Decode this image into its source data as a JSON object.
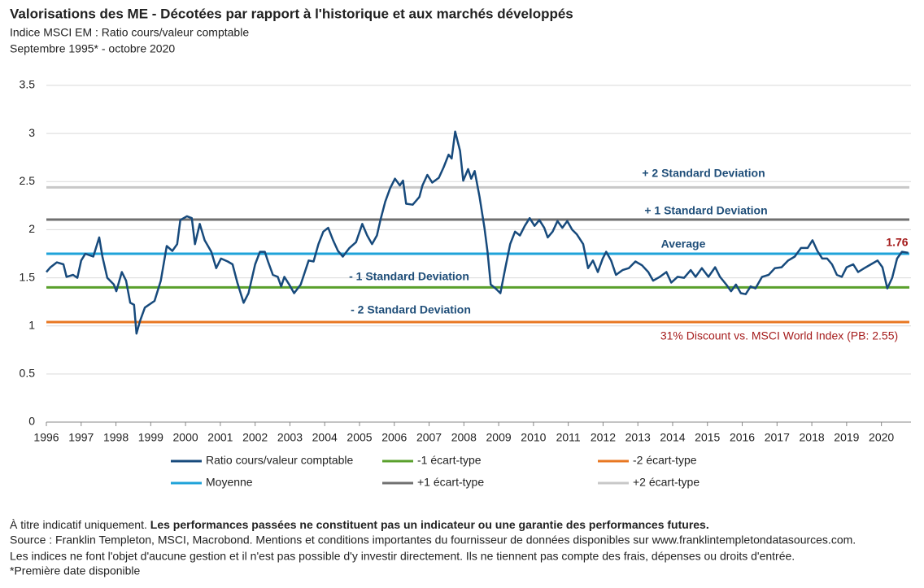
{
  "chart_data": {
    "type": "line",
    "title": "Valorisations des ME - Décotées par rapport à l'historique et aux marchés développés",
    "subtitle": "Indice MSCI EM : Ratio cours/valeur comptable",
    "period": "Septembre 1995* - octobre 2020",
    "x": [
      1996.0,
      1996.12,
      1996.3,
      1996.49,
      1996.58,
      1996.77,
      1996.89,
      1997.0,
      1997.12,
      1997.35,
      1997.52,
      1997.61,
      1997.75,
      1997.94,
      1998.01,
      1998.17,
      1998.29,
      1998.41,
      1998.52,
      1998.59,
      1998.69,
      1998.83,
      1999.11,
      1999.29,
      1999.46,
      1999.62,
      1999.76,
      1999.85,
      2000.04,
      2000.18,
      2000.27,
      2000.41,
      2000.55,
      2000.74,
      2000.88,
      2001.02,
      2001.21,
      2001.35,
      2001.49,
      2001.67,
      2001.81,
      2002.0,
      2002.14,
      2002.28,
      2002.37,
      2002.51,
      2002.65,
      2002.75,
      2002.84,
      2002.98,
      2003.12,
      2003.31,
      2003.54,
      2003.68,
      2003.82,
      2003.96,
      2004.1,
      2004.24,
      2004.38,
      2004.52,
      2004.71,
      2004.9,
      2005.08,
      2005.22,
      2005.36,
      2005.5,
      2005.6,
      2005.74,
      2005.88,
      2006.02,
      2006.16,
      2006.25,
      2006.34,
      2006.53,
      2006.72,
      2006.81,
      2006.95,
      2007.09,
      2007.28,
      2007.42,
      2007.56,
      2007.65,
      2007.75,
      2007.89,
      2007.98,
      2008.12,
      2008.21,
      2008.31,
      2008.45,
      2008.59,
      2008.68,
      2008.77,
      2008.91,
      2009.05,
      2009.19,
      2009.33,
      2009.47,
      2009.61,
      2009.75,
      2009.89,
      2010.03,
      2010.17,
      2010.31,
      2010.41,
      2010.55,
      2010.69,
      2010.83,
      2010.97,
      2011.11,
      2011.25,
      2011.43,
      2011.57,
      2011.71,
      2011.85,
      2011.99,
      2012.09,
      2012.23,
      2012.37,
      2012.56,
      2012.74,
      2012.93,
      2013.12,
      2013.3,
      2013.44,
      2013.63,
      2013.82,
      2013.96,
      2014.14,
      2014.33,
      2014.52,
      2014.66,
      2014.84,
      2015.03,
      2015.22,
      2015.36,
      2015.54,
      2015.68,
      2015.82,
      2015.96,
      2016.1,
      2016.24,
      2016.38,
      2016.57,
      2016.76,
      2016.94,
      2017.13,
      2017.32,
      2017.51,
      2017.69,
      2017.88,
      2018.02,
      2018.16,
      2018.3,
      2018.44,
      2018.58,
      2018.72,
      2018.86,
      2019.0,
      2019.19,
      2019.33,
      2019.51,
      2019.7,
      2019.89,
      2020.03,
      2020.17,
      2020.31,
      2020.45,
      2020.59,
      2020.77
    ],
    "series": [
      {
        "name": "Ratio cours/valeur comptable",
        "color": "#174a7c",
        "values": [
          1.56,
          1.61,
          1.66,
          1.64,
          1.51,
          1.53,
          1.5,
          1.68,
          1.75,
          1.72,
          1.92,
          1.72,
          1.5,
          1.43,
          1.36,
          1.56,
          1.47,
          1.24,
          1.22,
          0.92,
          1.05,
          1.19,
          1.26,
          1.47,
          1.83,
          1.78,
          1.85,
          2.1,
          2.14,
          2.12,
          1.85,
          2.06,
          1.89,
          1.77,
          1.6,
          1.7,
          1.67,
          1.64,
          1.45,
          1.24,
          1.34,
          1.64,
          1.77,
          1.77,
          1.67,
          1.53,
          1.51,
          1.41,
          1.51,
          1.43,
          1.34,
          1.43,
          1.68,
          1.67,
          1.85,
          1.98,
          2.02,
          1.89,
          1.78,
          1.72,
          1.81,
          1.87,
          2.06,
          1.94,
          1.85,
          1.94,
          2.1,
          2.29,
          2.43,
          2.53,
          2.46,
          2.51,
          2.27,
          2.26,
          2.34,
          2.46,
          2.57,
          2.49,
          2.54,
          2.65,
          2.78,
          2.74,
          3.02,
          2.82,
          2.51,
          2.63,
          2.53,
          2.61,
          2.34,
          2.02,
          1.77,
          1.43,
          1.39,
          1.34,
          1.6,
          1.85,
          1.98,
          1.94,
          2.04,
          2.12,
          2.04,
          2.1,
          2.02,
          1.92,
          1.98,
          2.09,
          2.02,
          2.09,
          2.0,
          1.95,
          1.85,
          1.6,
          1.68,
          1.56,
          1.7,
          1.77,
          1.68,
          1.53,
          1.58,
          1.6,
          1.67,
          1.63,
          1.56,
          1.47,
          1.51,
          1.56,
          1.45,
          1.51,
          1.5,
          1.58,
          1.51,
          1.6,
          1.51,
          1.61,
          1.51,
          1.43,
          1.36,
          1.43,
          1.34,
          1.33,
          1.41,
          1.39,
          1.51,
          1.53,
          1.6,
          1.61,
          1.68,
          1.72,
          1.81,
          1.81,
          1.89,
          1.78,
          1.7,
          1.7,
          1.64,
          1.53,
          1.51,
          1.61,
          1.64,
          1.56,
          1.6,
          1.64,
          1.68,
          1.61,
          1.39,
          1.5,
          1.7,
          1.77,
          1.76
        ]
      }
    ],
    "reference_lines": [
      {
        "name": "-1 écart-type",
        "color": "#5aa02c",
        "value": 1.4,
        "annotation": "- 1 Standard Deviation"
      },
      {
        "name": "-2 écart-type",
        "color": "#e87722",
        "value": 1.04,
        "annotation": "- 2 Standard Deviation"
      },
      {
        "name": "Moyenne",
        "color": "#1fa3d9",
        "value": 1.75,
        "annotation": "Average"
      },
      {
        "name": "+1 écart-type",
        "color": "#707070",
        "value": 2.105,
        "annotation": "+ 1 Standard Deviation"
      },
      {
        "name": "+2 écart-type",
        "color": "#c8c8c8",
        "value": 2.44,
        "annotation": "+ 2 Standard Deviation"
      }
    ],
    "discount_note": "31% Discount vs. MSCI World Index (PB: 2.55)",
    "xlim": [
      1996,
      2020.85
    ],
    "xticks": [
      1996,
      1997,
      1998,
      1999,
      2000,
      2001,
      2002,
      2003,
      2004,
      2005,
      2006,
      2007,
      2008,
      2009,
      2010,
      2011,
      2012,
      2013,
      2014,
      2015,
      2016,
      2017,
      2018,
      2019,
      2020
    ],
    "ylim": [
      0,
      3.5
    ],
    "yticks": [
      0,
      0.5,
      1,
      1.5,
      2,
      2.5,
      3,
      3.5
    ],
    "grid": true
  },
  "footer": {
    "note": "À titre indicatif uniquement.",
    "warning": "Les performances passées ne constituent pas un indicateur ou une garantie des performances futures.",
    "source": "Source : Franklin Templeton, MSCI, Macrobond. Mentions et conditions importantes du fournisseur de données disponibles sur www.franklintempletondatasources.com.",
    "indices": "Les indices ne font l'objet d'aucune gestion et il n'est pas possible d'y investir directement. Ils ne tiennent pas compte des frais, dépenses ou droits d'entrée.",
    "first_date": "*Première date disponible"
  }
}
